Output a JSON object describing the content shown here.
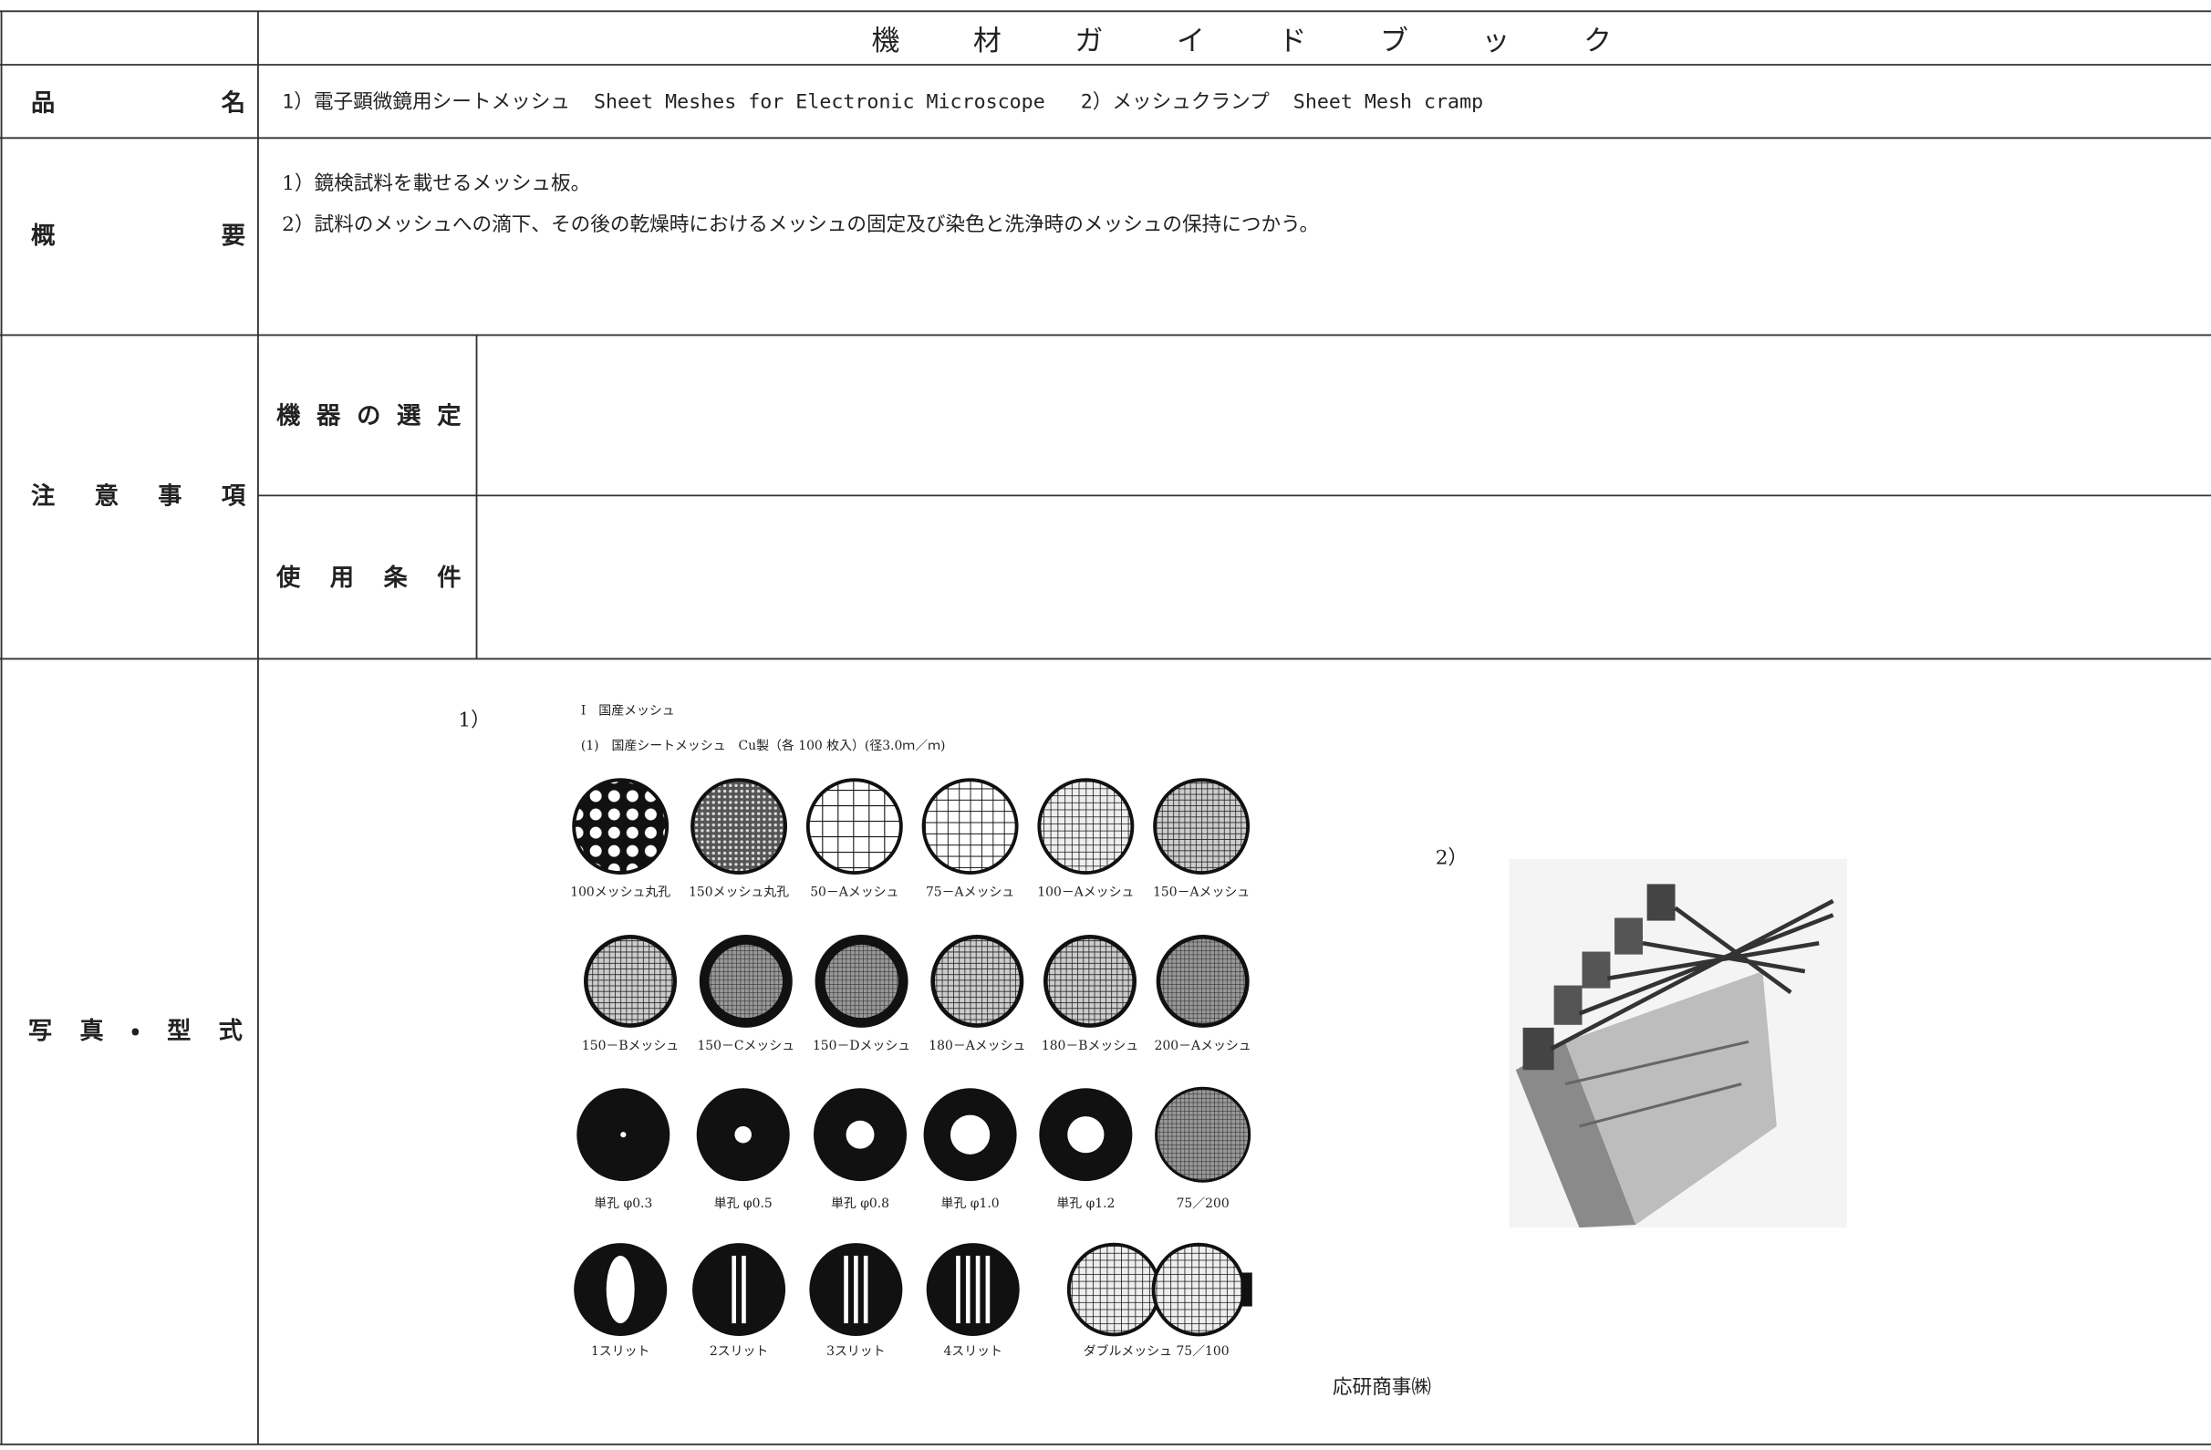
{
  "header": {
    "title": "機材ガイドブック"
  },
  "product": {
    "label": "品名",
    "value": "1）電子顕微鏡用シートメッシュ  Sheet Meshes for Electronic Microscope   2）メッシュクランプ  Sheet Mesh cramp"
  },
  "summary": {
    "label": "概要",
    "lines": [
      "1）鏡検試料を載せるメッシュ板。",
      "2）試料のメッシュへの滴下、その後の乾燥時におけるメッシュの固定及び染色と洗浄時のメッシュの保持につかう。"
    ]
  },
  "notes": {
    "label": "注意事項",
    "items": [
      {
        "label": "機器の選定"
      },
      {
        "label": "使用条件"
      }
    ]
  },
  "photo": {
    "label": "写真・型式",
    "figure1": {
      "marker": "1）",
      "heading": "I　国産メッシュ",
      "subheading": "(1)　国産シートメッシュ　Cu製（各 100 枚入）(径3.0ｍ／ｍ)",
      "meshes": [
        [
          "100メッシュ丸孔",
          "150メッシュ丸孔",
          "50－Aメッシュ",
          "75－Aメッシュ",
          "100－Aメッシュ",
          "150－Aメッシュ"
        ],
        [
          "150－Bメッシュ",
          "150－Cメッシュ",
          "150－Dメッシュ",
          "180－Aメッシュ",
          "180－Bメッシュ",
          "200－Aメッシュ"
        ],
        [
          "単孔 φ0.3",
          "単孔 φ0.5",
          "単孔 φ0.8",
          "単孔 φ1.0",
          "単孔 φ1.2",
          "75／200"
        ],
        [
          "1スリット",
          "2スリット",
          "3スリット",
          "4スリット",
          "ダブルメッシュ 75／100"
        ]
      ]
    },
    "figure2": {
      "marker": "2）",
      "maker": "応研商事㈱"
    }
  }
}
